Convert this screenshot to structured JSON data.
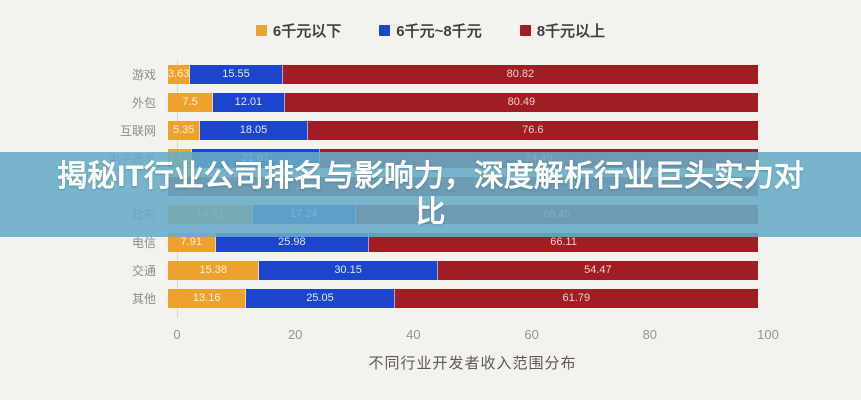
{
  "overlay": {
    "title_line1": "揭秘IT行业公司排名与影响力，深度解析行业巨头实力对",
    "title_line2": "比",
    "background_color": "#67acc7",
    "text_color": "#ffffff"
  },
  "legend": [
    {
      "label": "6千元以下",
      "color": "#eda22f"
    },
    {
      "label": "6千元~8千元",
      "color": "#1c45ce"
    },
    {
      "label": "8千元以上",
      "color": "#a01d23"
    }
  ],
  "rows": [
    {
      "label": "游戏",
      "obscured": false,
      "segments": [
        {
          "band": "low",
          "text": "3.63",
          "width": 3.63
        },
        {
          "band": "mid",
          "text": "15.55",
          "width": 15.55
        },
        {
          "band": "high",
          "text": "80.82",
          "width": 80.82
        }
      ]
    },
    {
      "label": "外包",
      "obscured": false,
      "segments": [
        {
          "band": "low",
          "text": "7.5",
          "width": 7.5
        },
        {
          "band": "mid",
          "text": "12.01",
          "width": 12.01
        },
        {
          "band": "high",
          "text": "80.49",
          "width": 80.49
        }
      ]
    },
    {
      "label": "互联网",
      "obscured": false,
      "segments": [
        {
          "band": "low",
          "text": "5.35",
          "width": 5.35
        },
        {
          "band": "mid",
          "text": "18.05",
          "width": 18.05
        },
        {
          "band": "high",
          "text": "76.6",
          "width": 76.6
        }
      ]
    },
    {
      "label": "电子商务",
      "obscured": false,
      "segments": [
        {
          "band": "low",
          "text": "3.84",
          "width": 3.84
        },
        {
          "band": "mid",
          "text": "21.67",
          "width": 21.67
        },
        {
          "band": "high",
          "text": "74.49",
          "width": 74.49
        }
      ]
    },
    {
      "label": "",
      "obscured": true,
      "segments": [
        {
          "band": "obscured",
          "text": "",
          "width": 100
        }
      ]
    },
    {
      "label": "政府",
      "obscured": false,
      "segments": [
        {
          "band": "low",
          "text": "14.31",
          "width": 14.31
        },
        {
          "band": "mid",
          "text": "17.24",
          "width": 17.24
        },
        {
          "band": "high",
          "text": "68.45",
          "width": 68.45
        }
      ]
    },
    {
      "label": "电信",
      "obscured": false,
      "segments": [
        {
          "band": "low",
          "text": "7.91",
          "width": 7.91
        },
        {
          "band": "mid",
          "text": "25.98",
          "width": 25.98
        },
        {
          "band": "high",
          "text": "66.11",
          "width": 66.11
        }
      ]
    },
    {
      "label": "交通",
      "obscured": false,
      "segments": [
        {
          "band": "low",
          "text": "15.38",
          "width": 15.38
        },
        {
          "band": "mid",
          "text": "30.15",
          "width": 30.15
        },
        {
          "band": "high",
          "text": "54.47",
          "width": 54.47
        }
      ]
    },
    {
      "label": "其他",
      "obscured": false,
      "segments": [
        {
          "band": "low",
          "text": "13.16",
          "width": 13.16
        },
        {
          "band": "mid",
          "text": "25.05",
          "width": 25.05
        },
        {
          "band": "high",
          "text": "61.79",
          "width": 61.79
        }
      ]
    }
  ],
  "axis": {
    "ticks": [
      "0",
      "20",
      "40",
      "60",
      "80",
      "100"
    ],
    "title": "不同行业开发者收入范围分布"
  },
  "chart_data": {
    "type": "bar",
    "orientation": "horizontal",
    "stacked": true,
    "title": "不同行业开发者收入范围分布",
    "categories": [
      "游戏",
      "外包",
      "互联网",
      "电子商务",
      "",
      "政府",
      "电信",
      "交通",
      "其他"
    ],
    "series": [
      {
        "name": "6千元以下",
        "color": "#eda22f",
        "values": [
          3.63,
          7.5,
          5.35,
          3.84,
          null,
          14.31,
          7.91,
          15.38,
          13.16
        ]
      },
      {
        "name": "6千元~8千元",
        "color": "#1c45ce",
        "values": [
          15.55,
          12.01,
          18.05,
          21.67,
          null,
          17.24,
          25.98,
          30.15,
          25.05
        ]
      },
      {
        "name": "8千元以上",
        "color": "#a01d23",
        "values": [
          80.82,
          80.49,
          76.6,
          74.49,
          null,
          68.45,
          66.11,
          54.47,
          61.79
        ]
      }
    ],
    "xlim": [
      0,
      100
    ],
    "x_ticks": [
      0,
      20,
      40,
      60,
      80,
      100
    ],
    "legend_position": "top",
    "grid": false,
    "note": "fifth category row is hidden behind the overlay banner"
  }
}
